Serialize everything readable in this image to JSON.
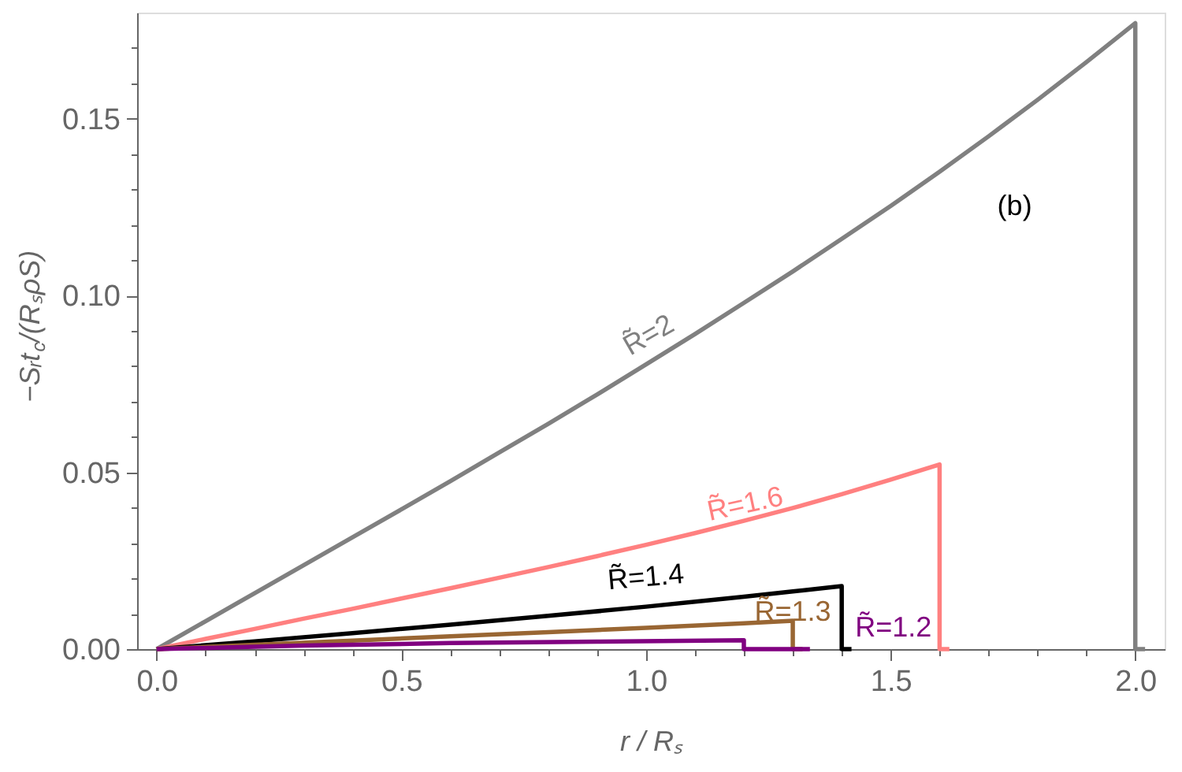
{
  "chart_data": {
    "type": "line",
    "xlabel": "r / Rₛ",
    "ylabel": "−Sᵣt$_{c}$/(RₛρS)",
    "annotations": [
      "(b)"
    ],
    "xlim": [
      -0.04,
      2.06
    ],
    "ylim": [
      0,
      0.18
    ],
    "xticks": [
      {
        "value": 0,
        "label": "0.0"
      },
      {
        "value": 0.1,
        "label": null
      },
      {
        "value": 0.2,
        "label": null
      },
      {
        "value": 0.3,
        "label": null
      },
      {
        "value": 0.4,
        "label": null
      },
      {
        "value": 0.5,
        "label": "0.5"
      },
      {
        "value": 0.6,
        "label": null
      },
      {
        "value": 0.7,
        "label": null
      },
      {
        "value": 0.8,
        "label": null
      },
      {
        "value": 0.9,
        "label": null
      },
      {
        "value": 1.0,
        "label": "1.0"
      },
      {
        "value": 1.1,
        "label": null
      },
      {
        "value": 1.2,
        "label": null
      },
      {
        "value": 1.3,
        "label": null
      },
      {
        "value": 1.4,
        "label": null
      },
      {
        "value": 1.5,
        "label": "1.5"
      },
      {
        "value": 1.6,
        "label": null
      },
      {
        "value": 1.7,
        "label": null
      },
      {
        "value": 1.8,
        "label": null
      },
      {
        "value": 1.9,
        "label": null
      },
      {
        "value": 2.0,
        "label": "2.0"
      }
    ],
    "yticks": [
      {
        "value": 0,
        "label": "0.00"
      },
      {
        "value": 0.01,
        "label": null
      },
      {
        "value": 0.02,
        "label": null
      },
      {
        "value": 0.03,
        "label": null
      },
      {
        "value": 0.04,
        "label": null
      },
      {
        "value": 0.05,
        "label": "0.05"
      },
      {
        "value": 0.06,
        "label": null
      },
      {
        "value": 0.07,
        "label": null
      },
      {
        "value": 0.08,
        "label": null
      },
      {
        "value": 0.09,
        "label": null
      },
      {
        "value": 0.1,
        "label": "0.10"
      },
      {
        "value": 0.11,
        "label": null
      },
      {
        "value": 0.12,
        "label": null
      },
      {
        "value": 0.13,
        "label": null
      },
      {
        "value": 0.14,
        "label": null
      },
      {
        "value": 0.15,
        "label": "0.15"
      },
      {
        "value": 0.16,
        "label": null
      },
      {
        "value": 0.17,
        "label": null
      }
    ],
    "series": [
      {
        "name": "R̃=2",
        "color": "#808080",
        "x": [
          0,
          0.1,
          0.2,
          0.3,
          0.4,
          0.5,
          0.6,
          0.7,
          0.8,
          0.9,
          1.0,
          1.1,
          1.2,
          1.3,
          1.4,
          1.5,
          1.6,
          1.7,
          1.8,
          1.9,
          2.0,
          2.0,
          2.02
        ],
        "values": [
          0,
          0.0079,
          0.0158,
          0.0237,
          0.0316,
          0.0395,
          0.0475,
          0.0556,
          0.0637,
          0.072,
          0.0805,
          0.0891,
          0.0979,
          0.1068,
          0.116,
          0.1253,
          0.135,
          0.145,
          0.1553,
          0.166,
          0.177,
          0,
          0
        ]
      },
      {
        "name": "R̃=1.6",
        "color": "#ff8080",
        "x": [
          0,
          0.1,
          0.2,
          0.3,
          0.4,
          0.5,
          0.6,
          0.7,
          0.8,
          0.9,
          1.0,
          1.1,
          1.2,
          1.3,
          1.4,
          1.5,
          1.6,
          1.6,
          1.62
        ],
        "values": [
          0,
          0.0029,
          0.0057,
          0.0086,
          0.0114,
          0.0143,
          0.0172,
          0.0202,
          0.0232,
          0.0263,
          0.0295,
          0.0328,
          0.0363,
          0.0399,
          0.0438,
          0.0479,
          0.0522,
          0,
          0
        ]
      },
      {
        "name": "R̃=1.4",
        "color": "#000000",
        "x": [
          0,
          0.2,
          0.4,
          0.6,
          0.8,
          1.0,
          1.2,
          1.3,
          1.4,
          1.4,
          1.42
        ],
        "values": [
          0,
          0.0022,
          0.0045,
          0.0069,
          0.0094,
          0.012,
          0.0148,
          0.0163,
          0.0178,
          0,
          0
        ]
      },
      {
        "name": "R̃=1.3",
        "color": "#996633",
        "x": [
          0,
          0.2,
          0.4,
          0.6,
          0.8,
          1.0,
          1.2,
          1.3,
          1.3,
          1.32
        ],
        "values": [
          0,
          0.0012,
          0.0024,
          0.0036,
          0.0048,
          0.006,
          0.0073,
          0.008,
          0,
          0
        ]
      },
      {
        "name": "R̃=1.2",
        "color": "#800080",
        "x": [
          0,
          0.3,
          0.6,
          0.9,
          1.2,
          1.2,
          1.335
        ],
        "values": [
          0,
          0.001,
          0.0017,
          0.0021,
          0.0025,
          0,
          0
        ]
      }
    ]
  }
}
